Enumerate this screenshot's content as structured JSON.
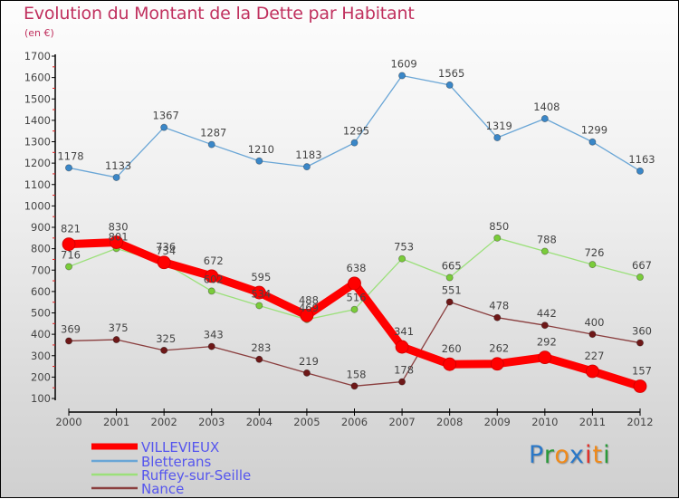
{
  "chart_data": {
    "type": "line",
    "title": "Evolution du Montant de la Dette par Habitant",
    "subtitle": "(en €)",
    "xlabel": "",
    "ylabel": "",
    "x": [
      "2000",
      "2001",
      "2002",
      "2003",
      "2004",
      "2005",
      "2006",
      "2007",
      "2008",
      "2009",
      "2010",
      "2011",
      "2012"
    ],
    "ylim": [
      100,
      1700
    ],
    "yticks": [
      100,
      200,
      300,
      400,
      500,
      600,
      700,
      800,
      900,
      1000,
      1100,
      1200,
      1300,
      1400,
      1500,
      1600,
      1700
    ],
    "grid": false,
    "legend_position": "bottom-left",
    "series": [
      {
        "name": "Bletterans",
        "color": "#3a87c8",
        "line_color": "#6aa6d6",
        "values": [
          1178,
          1133,
          1367,
          1287,
          1210,
          1183,
          1295,
          1609,
          1565,
          1319,
          1408,
          1299,
          1163
        ]
      },
      {
        "name": "Ruffey-sur-Seille",
        "color": "#7acc3a",
        "line_color": "#9be07a",
        "values": [
          716,
          801,
          734,
          602,
          534,
          469,
          516,
          753,
          665,
          850,
          788,
          726,
          667
        ]
      },
      {
        "name": "Nance",
        "color": "#6e1818",
        "line_color": "#8a3e3e",
        "values": [
          369,
          375,
          325,
          343,
          283,
          219,
          158,
          178,
          551,
          478,
          442,
          400,
          360
        ]
      },
      {
        "name": "VILLEVIEUX",
        "color": "#ff0000",
        "line_color": "#ff0000",
        "emphasis": true,
        "values": [
          821,
          830,
          736,
          672,
          595,
          488,
          638,
          341,
          260,
          262,
          292,
          227,
          157
        ]
      }
    ],
    "legend_order": [
      "VILLEVIEUX",
      "Bletterans",
      "Ruffey-sur-Seille",
      "Nance"
    ]
  },
  "branding": {
    "logo_letters": [
      {
        "ch": "P",
        "color": "#2a78c8"
      },
      {
        "ch": "r",
        "color": "#2a9a3a"
      },
      {
        "ch": "o",
        "color": "#f08a1a"
      },
      {
        "ch": "x",
        "color": "#2a78c8"
      },
      {
        "ch": "i",
        "color": "#e0302a"
      },
      {
        "ch": "t",
        "color": "#f08a1a"
      },
      {
        "ch": "i",
        "color": "#2a9a3a"
      }
    ]
  }
}
